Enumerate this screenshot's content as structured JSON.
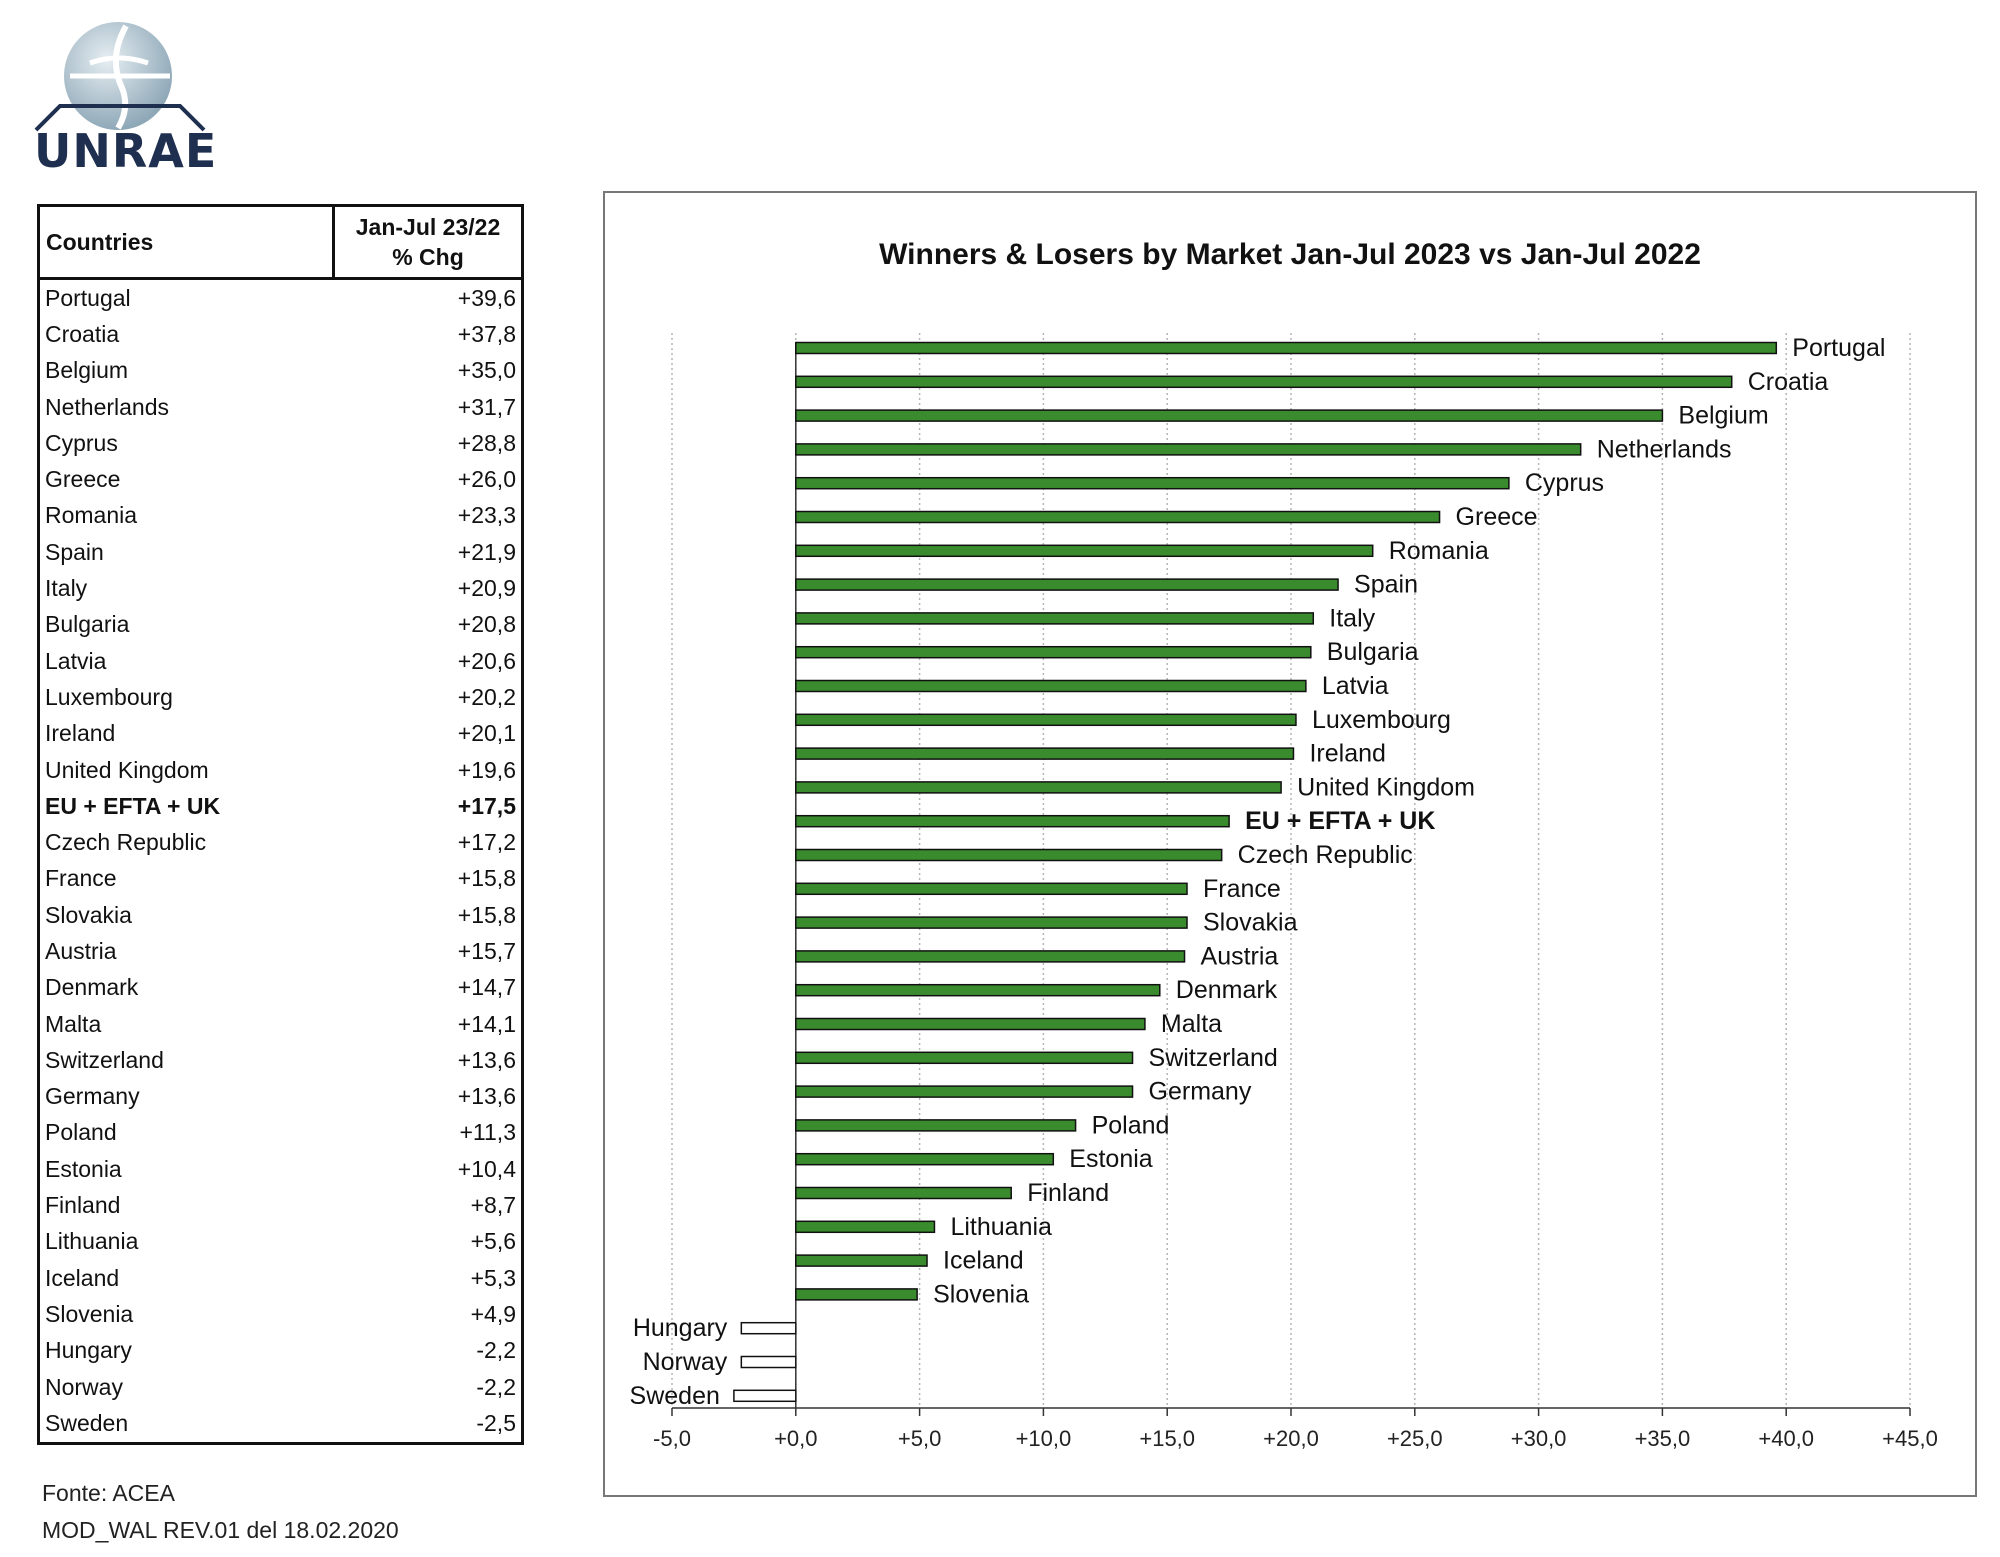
{
  "logo": {
    "text": "UNRAE"
  },
  "table": {
    "header_country": "Countries",
    "header_change_line1": "Jan-Jul 23/22",
    "header_change_line2": "% Chg",
    "rows": [
      {
        "country": "Portugal",
        "value": "+39,6"
      },
      {
        "country": "Croatia",
        "value": "+37,8"
      },
      {
        "country": "Belgium",
        "value": "+35,0"
      },
      {
        "country": "Netherlands",
        "value": "+31,7"
      },
      {
        "country": "Cyprus",
        "value": "+28,8"
      },
      {
        "country": "Greece",
        "value": "+26,0"
      },
      {
        "country": "Romania",
        "value": "+23,3"
      },
      {
        "country": "Spain",
        "value": "+21,9"
      },
      {
        "country": "Italy",
        "value": "+20,9"
      },
      {
        "country": "Bulgaria",
        "value": "+20,8"
      },
      {
        "country": "Latvia",
        "value": "+20,6"
      },
      {
        "country": "Luxembourg",
        "value": "+20,2"
      },
      {
        "country": "Ireland",
        "value": "+20,1"
      },
      {
        "country": "United Kingdom",
        "value": "+19,6"
      },
      {
        "country": "EU + EFTA + UK",
        "value": "+17,5",
        "bold": true
      },
      {
        "country": "Czech Republic",
        "value": "+17,2"
      },
      {
        "country": "France",
        "value": "+15,8"
      },
      {
        "country": "Slovakia",
        "value": "+15,8"
      },
      {
        "country": "Austria",
        "value": "+15,7"
      },
      {
        "country": "Denmark",
        "value": "+14,7"
      },
      {
        "country": "Malta",
        "value": "+14,1"
      },
      {
        "country": "Switzerland",
        "value": "+13,6"
      },
      {
        "country": "Germany",
        "value": "+13,6"
      },
      {
        "country": "Poland",
        "value": "+11,3"
      },
      {
        "country": "Estonia",
        "value": "+10,4"
      },
      {
        "country": "Finland",
        "value": "+8,7"
      },
      {
        "country": "Lithuania",
        "value": "+5,6"
      },
      {
        "country": "Iceland",
        "value": "+5,3"
      },
      {
        "country": "Slovenia",
        "value": "+4,9"
      },
      {
        "country": "Hungary",
        "value": "-2,2"
      },
      {
        "country": "Norway",
        "value": "-2,2"
      },
      {
        "country": "Sweden",
        "value": "-2,5"
      }
    ]
  },
  "footer": {
    "source": "Fonte: ACEA",
    "doc_ref": "MOD_WAL REV.01 del 18.02.2020"
  },
  "chart_data": {
    "type": "bar",
    "orientation": "horizontal",
    "title": "Winners & Losers by Market  Jan-Jul 2023 vs Jan-Jul 2022",
    "xlabel": "",
    "ylabel": "",
    "xlim": [
      -5,
      45
    ],
    "xticks": [
      -5,
      0,
      5,
      10,
      15,
      20,
      25,
      30,
      35,
      40,
      45
    ],
    "xtick_labels": [
      "-5,0",
      "+0,0",
      "+5,0",
      "+10,0",
      "+15,0",
      "+20,0",
      "+25,0",
      "+30,0",
      "+35,0",
      "+40,0",
      "+45,0"
    ],
    "grid": "vertical",
    "positive_color": "#3a8a2e",
    "negative_color": "#ffffff",
    "categories": [
      "Portugal",
      "Croatia",
      "Belgium",
      "Netherlands",
      "Cyprus",
      "Greece",
      "Romania",
      "Spain",
      "Italy",
      "Bulgaria",
      "Latvia",
      "Luxembourg",
      "Ireland",
      "United Kingdom",
      "EU + EFTA + UK",
      "Czech Republic",
      "France",
      "Slovakia",
      "Austria",
      "Denmark",
      "Malta",
      "Switzerland",
      "Germany",
      "Poland",
      "Estonia",
      "Finland",
      "Lithuania",
      "Iceland",
      "Slovenia",
      "Hungary",
      "Norway",
      "Sweden"
    ],
    "values": [
      39.6,
      37.8,
      35.0,
      31.7,
      28.8,
      26.0,
      23.3,
      21.9,
      20.9,
      20.8,
      20.6,
      20.2,
      20.1,
      19.6,
      17.5,
      17.2,
      15.8,
      15.8,
      15.7,
      14.7,
      14.1,
      13.6,
      13.6,
      11.3,
      10.4,
      8.7,
      5.6,
      5.3,
      4.9,
      -2.2,
      -2.2,
      -2.5
    ],
    "bold_categories": [
      "EU + EFTA + UK"
    ]
  }
}
